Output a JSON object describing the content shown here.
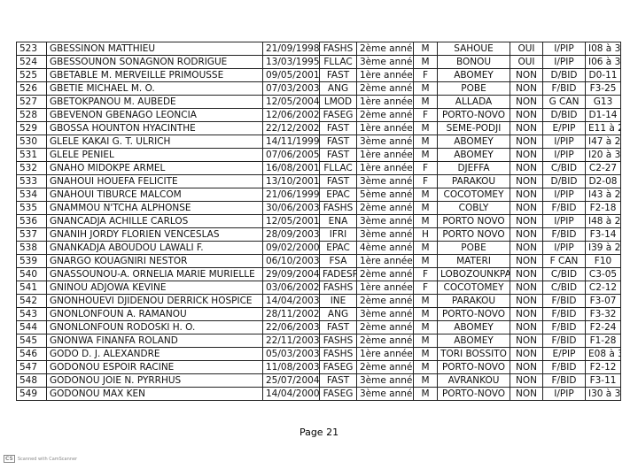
{
  "table": {
    "rows": [
      [
        "523",
        "GBESSINON MATTHIEU",
        "21/09/1998",
        "FASHS",
        "2ème année",
        "M",
        "SAHOUE",
        "OUI",
        "I/PIP",
        "I08 à 3"
      ],
      [
        "524",
        "GBESSOUNON SONAGNON RODRIGUE",
        "13/03/1995",
        "FLLAC",
        "3ème année",
        "M",
        "BONOU",
        "OUI",
        "I/PIP",
        "I06 à 3"
      ],
      [
        "525",
        "GBETABLE M. MERVEILLE PRIMOUSSE",
        "09/05/2001",
        "FAST",
        "1ère année",
        "F",
        "ABOMEY",
        "NON",
        "D/BID",
        "D0-11"
      ],
      [
        "526",
        "GBETIE MICHAEL M. O.",
        "07/03/2003",
        "ANG",
        "2ème année",
        "M",
        "POBE",
        "NON",
        "F/BID",
        "F3-25"
      ],
      [
        "527",
        "GBETOKPANOU M. AUBEDE",
        "12/05/2004",
        "LMOD",
        "1ère année",
        "M",
        "ALLADA",
        "NON",
        "G CAN",
        "G13"
      ],
      [
        "528",
        "GBEVENON GBENAGO LEONCIA",
        "12/06/2002",
        "FASEG",
        "2ème année",
        "F",
        "PORTO-NOVO",
        "NON",
        "D/BID",
        "D1-14"
      ],
      [
        "529",
        "GBOSSA HOUNTON HYACINTHE",
        "22/12/2002",
        "FAST",
        "1ère année",
        "M",
        "SEME-PODJI",
        "NON",
        "E/PIP",
        "E11 à 2"
      ],
      [
        "530",
        "GLELE KAKAI G. T. ULRICH",
        "14/11/1999",
        "FAST",
        "3ème année",
        "M",
        "ABOMEY",
        "NON",
        "I/PIP",
        "I47 à 2"
      ],
      [
        "531",
        "GLELE PENIEL",
        "07/06/2005",
        "FAST",
        "1ère année",
        "M",
        "ABOMEY",
        "NON",
        "I/PIP",
        "I20 à 3"
      ],
      [
        "532",
        "GNAHO MIDOKPE ARMEL",
        "16/08/2001",
        "FLLAC",
        "1ère année",
        "F",
        "DJEFFA",
        "NON",
        "C/BID",
        "C2-27"
      ],
      [
        "533",
        "GNAHOUI HOUEFA FELICITE",
        "13/10/2001",
        "FAST",
        "3ème année",
        "F",
        "PARAKOU",
        "NON",
        "D/BID",
        "D2-08"
      ],
      [
        "534",
        "GNAHOUI TIBURCE MALCOM",
        "21/06/1999",
        "EPAC",
        "5ème année",
        "M",
        "COCOTOMEY",
        "NON",
        "I/PIP",
        "I43 à 2"
      ],
      [
        "535",
        "GNAMMOU N'TCHA ALPHONSE",
        "30/06/2003",
        "FASHS",
        "2ème année",
        "M",
        "COBLY",
        "NON",
        "F/BID",
        "F2-18"
      ],
      [
        "536",
        "GNANCADJA ACHILLE CARLOS",
        "12/05/2001",
        "ENA",
        "3ème année",
        "M",
        "PORTO NOVO",
        "NON",
        "I/PIP",
        "I48 à 2"
      ],
      [
        "537",
        "GNANIH JORDY FLORIEN VENCESLAS",
        "28/09/2003",
        "IFRI",
        "3ème année",
        "H",
        "PORTO NOVO",
        "NON",
        "F/BID",
        "F3-14"
      ],
      [
        "538",
        "GNANKADJA ABOUDOU LAWALI F.",
        "09/02/2000",
        "EPAC",
        "4ème année",
        "M",
        "POBE",
        "NON",
        "I/PIP",
        "I39 à 2"
      ],
      [
        "539",
        "GNARGO KOUAGNIRI NESTOR",
        "06/10/2003",
        "FSA",
        "1ère année",
        "M",
        "MATERI",
        "NON",
        "F CAN",
        "F10"
      ],
      [
        "540",
        "GNASSOUNOU-A. ORNELIA MARIE MURIELLE",
        "29/09/2004",
        "FADESP",
        "2ème année",
        "F",
        "LOBOZOUNKPA",
        "NON",
        "C/BID",
        "C3-05"
      ],
      [
        "541",
        "GNINOU ADJOWA KEVINE",
        "03/06/2002",
        "FASHS",
        "1ère année",
        "F",
        "COCOTOMEY",
        "NON",
        "C/BID",
        "C2-12"
      ],
      [
        "542",
        "GNONHOUEVI DJIDENOU DERRICK HOSPICE",
        "14/04/2003",
        "INE",
        "2ème année",
        "M",
        "PARAKOU",
        "NON",
        "F/BID",
        "F3-07"
      ],
      [
        "543",
        "GNONLONFOUN A. RAMANOU",
        "28/11/2002",
        "ANG",
        "3ème année",
        "M",
        "PORTO-NOVO",
        "NON",
        "F/BID",
        "F3-32"
      ],
      [
        "544",
        "GNONLONFOUN RODOSKI H. O.",
        "22/06/2003",
        "FAST",
        "2ème année",
        "M",
        "ABOMEY",
        "NON",
        "F/BID",
        "F2-24"
      ],
      [
        "545",
        "GNONWA FINANFA ROLAND",
        "22/11/2003",
        "FASHS",
        "2ème année",
        "M",
        "ABOMEY",
        "NON",
        "F/BID",
        "F1-28"
      ],
      [
        "546",
        "GODO D. J. ALEXANDRE",
        "05/03/2003",
        "FASHS",
        "1ère année",
        "M",
        "TORI BOSSITO",
        "NON",
        "E/PIP",
        "E08 à 3"
      ],
      [
        "547",
        "GODONOU ESPOIR RACINE",
        "11/08/2003",
        "FASEG",
        "2ème année",
        "M",
        "PORTO-NOVO",
        "NON",
        "F/BID",
        "F2-12"
      ],
      [
        "548",
        "GODONOU JOIE N. PYRRHUS",
        "25/07/2004",
        "FAST",
        "3ème année",
        "M",
        "AVRANKOU",
        "NON",
        "F/BID",
        "F3-11"
      ],
      [
        "549",
        "GODONOU MAX KEN",
        "14/04/2000",
        "FASEG",
        "3ème année",
        "M",
        "PORTO-NOVO",
        "NON",
        "I/PIP",
        "I30 à 3"
      ]
    ]
  },
  "footer": {
    "page": "Page 21",
    "scanner": "Scanned with CamScanner"
  }
}
